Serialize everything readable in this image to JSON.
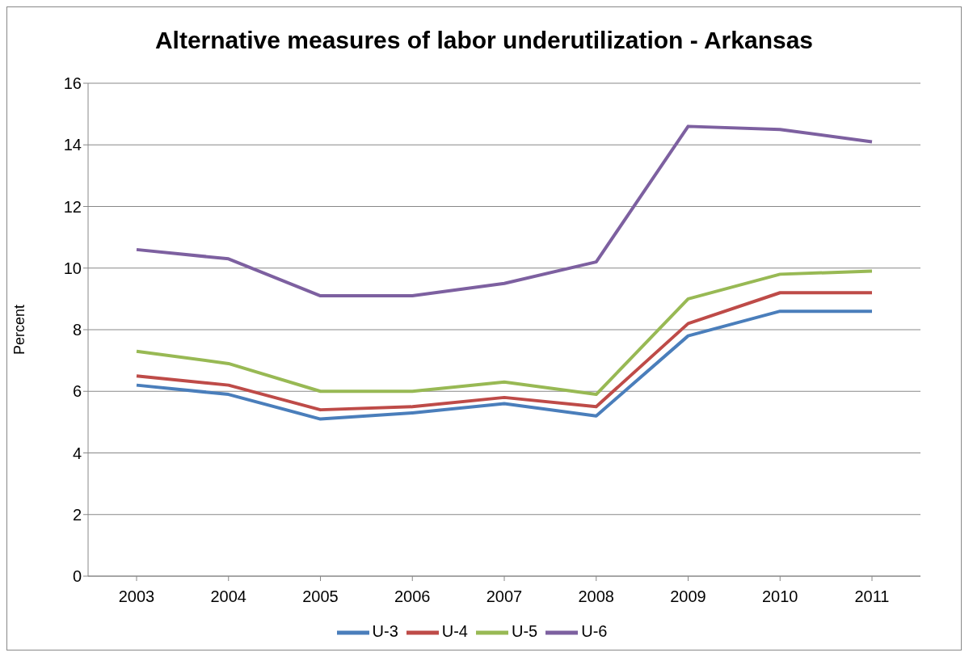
{
  "chart_data": {
    "type": "line",
    "title": "Alternative measures of labor underutilization - Arkansas",
    "ylabel": "Percent",
    "categories": [
      "2003",
      "2004",
      "2005",
      "2006",
      "2007",
      "2008",
      "2009",
      "2010",
      "2011"
    ],
    "series": [
      {
        "name": "U-3",
        "color": "#4a7ebb",
        "values": [
          6.2,
          5.9,
          5.1,
          5.3,
          5.6,
          5.2,
          7.8,
          8.6,
          8.6
        ]
      },
      {
        "name": "U-4",
        "color": "#be4b48",
        "values": [
          6.5,
          6.2,
          5.4,
          5.5,
          5.8,
          5.5,
          8.2,
          9.2,
          9.2
        ]
      },
      {
        "name": "U-5",
        "color": "#98b954",
        "values": [
          7.3,
          6.9,
          6.0,
          6.0,
          6.3,
          5.9,
          9.0,
          9.8,
          9.9
        ]
      },
      {
        "name": "U-6",
        "color": "#7d60a0",
        "values": [
          10.6,
          10.3,
          9.1,
          9.1,
          9.5,
          10.2,
          14.6,
          14.5,
          14.1
        ]
      }
    ],
    "ylim": [
      0,
      16
    ],
    "yticks": [
      0,
      2,
      4,
      6,
      8,
      10,
      12,
      14,
      16
    ],
    "grid": "y",
    "legend": "bottom",
    "marker": "none",
    "line_style": "solid"
  }
}
